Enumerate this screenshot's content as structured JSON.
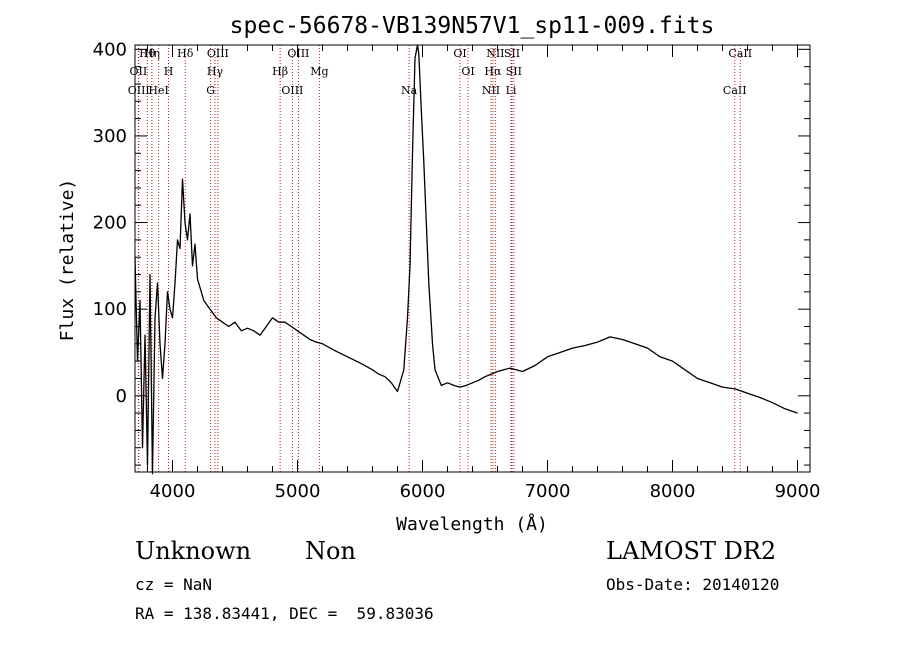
{
  "chart_data": {
    "type": "line",
    "title": "spec-56678-VB139N57V1_sp11-009.fits",
    "xlabel": "Wavelength (Å)",
    "ylabel": "Flux (relative)",
    "xlim": [
      3700,
      9100
    ],
    "ylim": [
      -88,
      405
    ],
    "xticks": [
      4000,
      5000,
      6000,
      7000,
      8000,
      9000
    ],
    "yticks": [
      0,
      100,
      200,
      300,
      400
    ],
    "grid": false,
    "line_color": "#000000",
    "marker_color": "#b22222",
    "lines": [
      {
        "name": "Hθ",
        "wavelength": 3798
      },
      {
        "name": "OII",
        "wavelength": 3727
      },
      {
        "name": "OIII",
        "wavelength": 3730
      },
      {
        "name": "Hη",
        "wavelength": 3835
      },
      {
        "name": "H",
        "wavelength": 3968
      },
      {
        "name": "HeI",
        "wavelength": 3889
      },
      {
        "name": "Hδ",
        "wavelength": 4102
      },
      {
        "name": "Hγ",
        "wavelength": 4340
      },
      {
        "name": "G",
        "wavelength": 4305
      },
      {
        "name": "OIII",
        "wavelength": 4363
      },
      {
        "name": "Hβ",
        "wavelength": 4861
      },
      {
        "name": "OIII",
        "wavelength": 4959
      },
      {
        "name": "OIII",
        "wavelength": 5007
      },
      {
        "name": "Mg",
        "wavelength": 5175
      },
      {
        "name": "Na",
        "wavelength": 5893
      },
      {
        "name": "OI",
        "wavelength": 6300
      },
      {
        "name": "OI",
        "wavelength": 6364
      },
      {
        "name": "NII",
        "wavelength": 6548
      },
      {
        "name": "NII",
        "wavelength": 6583
      },
      {
        "name": "Hα",
        "wavelength": 6563
      },
      {
        "name": "Li",
        "wavelength": 6708
      },
      {
        "name": "SII",
        "wavelength": 6716
      },
      {
        "name": "SII",
        "wavelength": 6731
      },
      {
        "name": "CaII",
        "wavelength": 8498
      },
      {
        "name": "CaII",
        "wavelength": 8542
      }
    ],
    "spectrum": {
      "x": [
        3700,
        3720,
        3740,
        3760,
        3780,
        3800,
        3820,
        3840,
        3860,
        3880,
        3900,
        3920,
        3940,
        3960,
        3980,
        4000,
        4020,
        4040,
        4060,
        4080,
        4100,
        4120,
        4140,
        4160,
        4180,
        4200,
        4250,
        4300,
        4350,
        4400,
        4450,
        4500,
        4550,
        4600,
        4650,
        4700,
        4750,
        4800,
        4850,
        4900,
        4950,
        5000,
        5050,
        5100,
        5150,
        5200,
        5300,
        5400,
        5500,
        5600,
        5650,
        5700,
        5750,
        5800,
        5850,
        5880,
        5900,
        5920,
        5940,
        5960,
        5970,
        5990,
        6010,
        6030,
        6050,
        6080,
        6100,
        6150,
        6200,
        6250,
        6300,
        6350,
        6400,
        6450,
        6500,
        6550,
        6600,
        6650,
        6700,
        6800,
        6900,
        7000,
        7100,
        7200,
        7300,
        7400,
        7500,
        7600,
        7700,
        7800,
        7900,
        8000,
        8100,
        8200,
        8300,
        8400,
        8500,
        8600,
        8700,
        8800,
        8900,
        9000
      ],
      "y": [
        160,
        40,
        110,
        -60,
        70,
        -80,
        140,
        -90,
        90,
        130,
        60,
        20,
        60,
        120,
        100,
        90,
        130,
        180,
        170,
        250,
        200,
        180,
        210,
        150,
        175,
        135,
        110,
        100,
        90,
        85,
        80,
        85,
        75,
        78,
        75,
        70,
        80,
        90,
        85,
        85,
        80,
        75,
        70,
        65,
        62,
        60,
        52,
        45,
        38,
        30,
        25,
        22,
        15,
        5,
        30,
        90,
        150,
        280,
        390,
        405,
        395,
        330,
        270,
        200,
        130,
        60,
        30,
        12,
        15,
        12,
        10,
        12,
        15,
        18,
        22,
        25,
        28,
        30,
        32,
        28,
        35,
        45,
        50,
        55,
        58,
        62,
        68,
        65,
        60,
        55,
        45,
        40,
        30,
        20,
        15,
        10,
        8,
        3,
        -2,
        -8,
        -15,
        -20
      ]
    }
  },
  "info": {
    "class": "Unknown",
    "subclass": "Non",
    "survey": "LAMOST DR2",
    "cz": "cz = NaN",
    "obs_date": "Obs-Date: 20140120",
    "coords": "RA = 138.83441, DEC =  59.83036"
  }
}
